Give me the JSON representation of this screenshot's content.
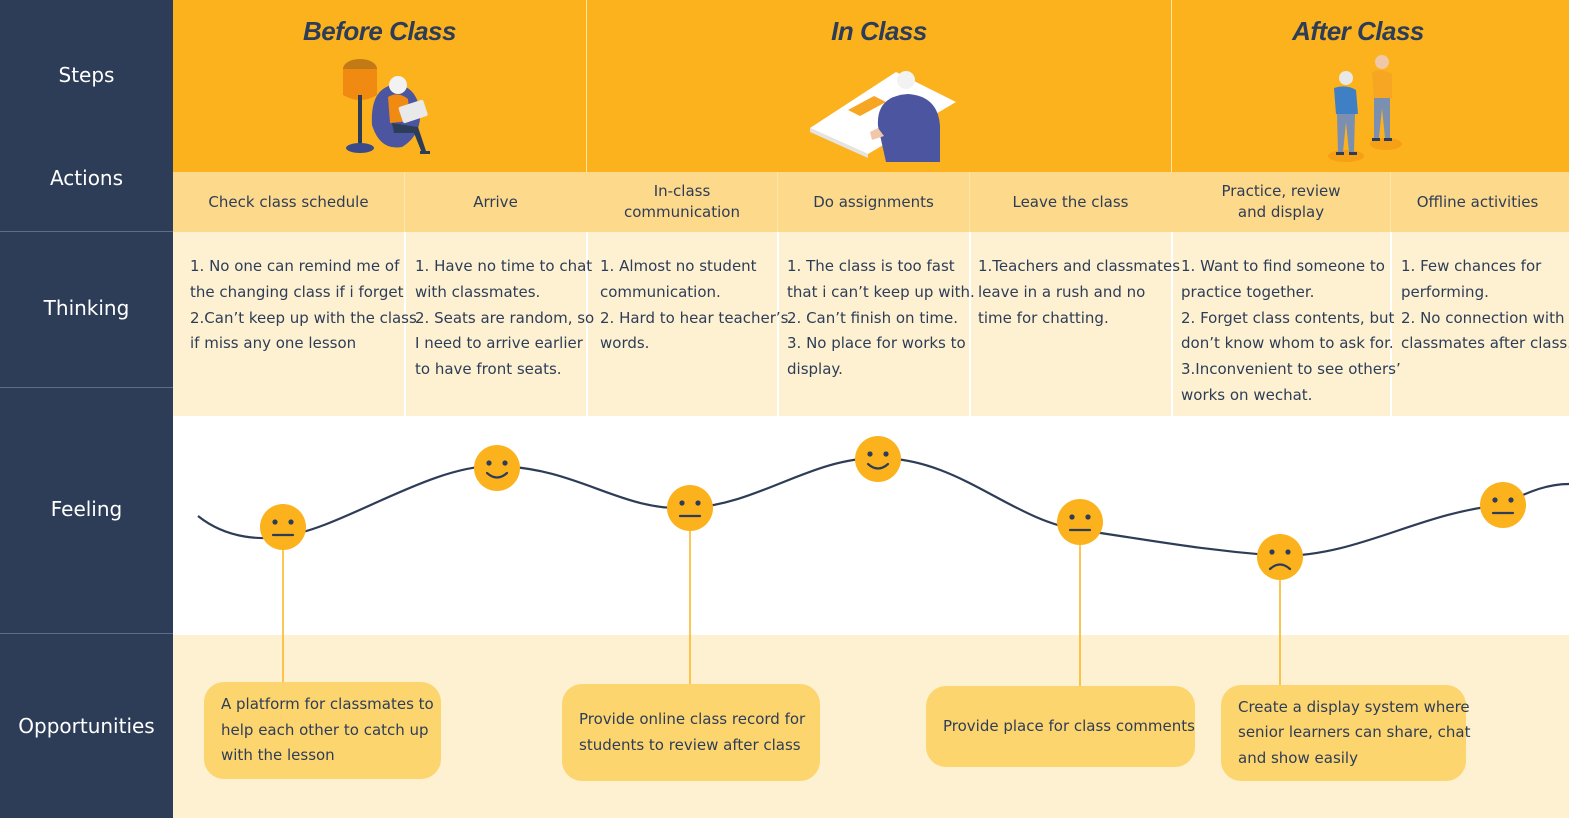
{
  "rows": {
    "steps": "Steps",
    "actions": "Actions",
    "thinking": "Thinking",
    "feeling": "Feeling",
    "opportunities": "Opportunities"
  },
  "phases": [
    "Before Class",
    "In Class",
    "After Class"
  ],
  "actions": [
    {
      "lines": [
        "Check class schedule"
      ]
    },
    {
      "lines": [
        "Arrive"
      ]
    },
    {
      "lines": [
        "In-class",
        "communication"
      ]
    },
    {
      "lines": [
        "Do assignments"
      ]
    },
    {
      "lines": [
        "Leave the class"
      ]
    },
    {
      "lines": [
        "Practice, review",
        "and display"
      ]
    },
    {
      "lines": [
        "Offline activities"
      ]
    }
  ],
  "thinking": [
    {
      "lines": [
        "1. No one can remind me of",
        "the changing class if i forget",
        "2.Can’t keep up with the class",
        "if miss any one lesson"
      ]
    },
    {
      "lines": [
        "1. Have no time to chat",
        "with classmates.",
        "2. Seats are random, so",
        "I need to arrive earlier",
        "to have front seats."
      ]
    },
    {
      "lines": [
        "1. Almost no student",
        "communication.",
        "2. Hard to hear teacher’s",
        "words."
      ]
    },
    {
      "lines": [
        "1. The class is too fast",
        "that i can’t keep up with.",
        "2. Can’t finish on time.",
        "3. No place for works to",
        "display."
      ]
    },
    {
      "lines": [
        "1.Teachers and classmates",
        "leave in a rush and no",
        "time for chatting."
      ]
    },
    {
      "lines": [
        "1. Want to find someone to",
        "practice together.",
        "2. Forget class contents, but",
        "don’t know whom to ask for.",
        "3.Inconvenient to see others’",
        "works on wechat."
      ]
    },
    {
      "lines": [
        "1.  Few chances for",
        "performing.",
        "2. No connection with",
        "classmates after class."
      ]
    }
  ],
  "feelings": [
    "neutral",
    "happy",
    "neutral",
    "happy",
    "neutral",
    "sad",
    "neutral"
  ],
  "opportunities": [
    {
      "lines": [
        "A platform for classmates to",
        "help each other to catch up",
        "with the lesson"
      ]
    },
    {
      "lines": [
        "Provide online class record for",
        "students to review after class"
      ]
    },
    {
      "lines": [
        "Provide place for class comments"
      ]
    },
    {
      "lines": [
        "Create a display system where",
        "senior learners can share, chat",
        "and show easily"
      ]
    }
  ],
  "colors": {
    "navy": "#2e3d57",
    "header_orange": "#fbb21c",
    "action_band": "#fdd98b",
    "light_band": "#fdf1d2",
    "emoji": "#fbb21c",
    "opportunity_box": "#fdd56f"
  }
}
